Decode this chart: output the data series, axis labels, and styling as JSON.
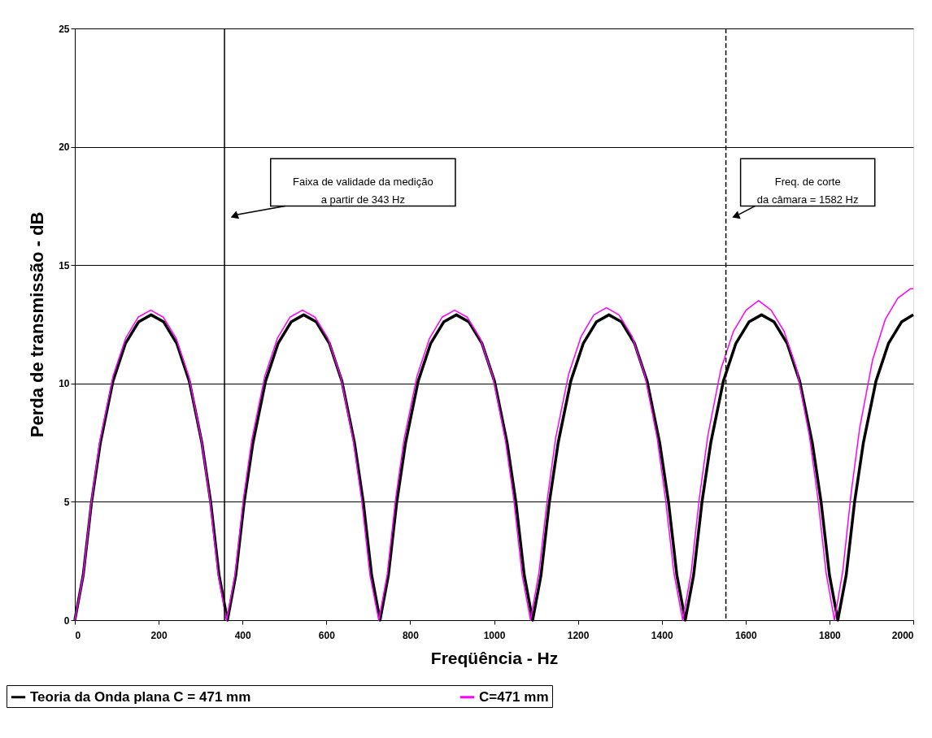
{
  "chart_data": {
    "type": "line",
    "xlabel": "Freqüência - Hz",
    "ylabel": "Perda de transmissão - dB",
    "xlim": [
      0,
      2000
    ],
    "xticks": [
      0,
      200,
      400,
      600,
      800,
      1000,
      1200,
      1400,
      1600,
      1800,
      2000
    ],
    "ylim": [
      0,
      25
    ],
    "yticks": [
      0,
      5,
      10,
      15,
      20,
      25
    ],
    "grid": "y",
    "legend": "bottom",
    "marker": "none",
    "line_style": "solid",
    "series": [
      {
        "name": "Teoria da Onda plana C = 471 mm",
        "color": "#000000",
        "x": [
          0,
          20,
          40,
          61,
          91,
          121,
          152,
          182,
          212,
          243,
          273,
          303,
          324,
          344,
          364,
          384,
          404,
          425,
          455,
          485,
          516,
          546,
          576,
          607,
          637,
          667,
          688,
          708,
          728,
          748,
          768,
          789,
          819,
          849,
          880,
          910,
          940,
          971,
          1001,
          1031,
          1052,
          1072,
          1092,
          1112,
          1132,
          1153,
          1183,
          1213,
          1244,
          1274,
          1304,
          1335,
          1365,
          1395,
          1416,
          1436,
          1456,
          1476,
          1496,
          1517,
          1547,
          1577,
          1608,
          1638,
          1668,
          1699,
          1729,
          1759,
          1780,
          1800,
          1820,
          1840,
          1860,
          1881,
          1911,
          1941,
          1972,
          2000
        ],
        "values": [
          0,
          1.9,
          5.0,
          7.5,
          10.1,
          11.7,
          12.6,
          12.9,
          12.6,
          11.7,
          10.1,
          7.5,
          5.0,
          1.9,
          0,
          1.9,
          5.0,
          7.5,
          10.1,
          11.7,
          12.6,
          12.9,
          12.6,
          11.7,
          10.1,
          7.5,
          5.0,
          1.9,
          0,
          1.9,
          5.0,
          7.5,
          10.1,
          11.7,
          12.6,
          12.9,
          12.6,
          11.7,
          10.1,
          7.5,
          5.0,
          1.9,
          0,
          1.9,
          5.0,
          7.5,
          10.1,
          11.7,
          12.6,
          12.9,
          12.6,
          11.7,
          10.1,
          7.5,
          5.0,
          1.9,
          0,
          1.9,
          5.0,
          7.5,
          10.1,
          11.7,
          12.6,
          12.9,
          12.6,
          11.7,
          10.1,
          7.5,
          5.0,
          1.9,
          0,
          1.9,
          5.0,
          7.5,
          10.1,
          11.7,
          12.6,
          12.9
        ]
      },
      {
        "name": "C=471 mm",
        "color": "#ff00ff",
        "x": [
          0,
          20,
          40,
          60,
          91,
          121,
          151,
          181,
          211,
          242,
          272,
          302,
          322,
          342,
          362,
          382,
          402,
          422,
          453,
          483,
          513,
          543,
          573,
          604,
          634,
          664,
          684,
          704,
          725,
          745,
          765,
          785,
          816,
          846,
          876,
          906,
          936,
          967,
          997,
          1027,
          1047,
          1067,
          1087,
          1107,
          1127,
          1147,
          1178,
          1208,
          1238,
          1268,
          1298,
          1329,
          1359,
          1389,
          1409,
          1429,
          1450,
          1470,
          1490,
          1510,
          1541,
          1571,
          1601,
          1631,
          1661,
          1692,
          1722,
          1752,
          1772,
          1792,
          1812,
          1832,
          1852,
          1872,
          1903,
          1933,
          1963,
          1993,
          2000
        ],
        "values": [
          0,
          1.9,
          5.1,
          7.6,
          10.3,
          11.9,
          12.8,
          13.1,
          12.8,
          11.9,
          10.3,
          7.6,
          5.1,
          1.9,
          0,
          1.9,
          5.1,
          7.6,
          10.3,
          11.9,
          12.8,
          13.1,
          12.8,
          11.9,
          10.3,
          7.6,
          5.1,
          1.9,
          0,
          1.9,
          5.1,
          7.6,
          10.3,
          11.9,
          12.8,
          13.1,
          12.8,
          11.9,
          10.3,
          7.6,
          5.1,
          1.9,
          0,
          2.0,
          5.1,
          7.7,
          10.4,
          12.0,
          12.9,
          13.2,
          12.9,
          12.0,
          10.4,
          7.7,
          5.1,
          2.0,
          0,
          2.0,
          5.2,
          7.8,
          10.6,
          12.2,
          13.1,
          13.5,
          13.1,
          12.2,
          10.6,
          7.8,
          5.2,
          2.0,
          0,
          2.1,
          5.4,
          8.1,
          11.0,
          12.7,
          13.6,
          14.0,
          14.0
        ]
      }
    ],
    "ref_lines": [
      {
        "axis": "x",
        "value": 357,
        "color": "#000000",
        "line_style": "solid"
      },
      {
        "axis": "x",
        "value": 1553,
        "color": "#000000",
        "line_style": "dashed"
      }
    ],
    "annotations": [
      "Faixa de validade da medição\na partir de 343 Hz",
      "Freq. de corte\nda câmara = 1582 Hz"
    ]
  }
}
